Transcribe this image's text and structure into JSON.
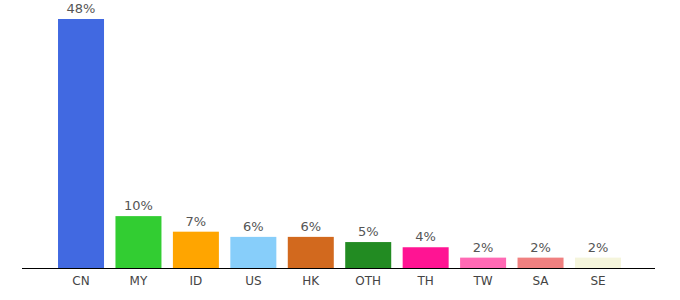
{
  "chart_data": {
    "type": "bar",
    "categories": [
      "CN",
      "MY",
      "ID",
      "US",
      "HK",
      "OTH",
      "TH",
      "TW",
      "SA",
      "SE"
    ],
    "values": [
      48,
      10,
      7,
      6,
      6,
      5,
      4,
      2,
      2,
      2
    ],
    "value_labels": [
      "48%",
      "10%",
      "7%",
      "6%",
      "6%",
      "5%",
      "4%",
      "2%",
      "2%",
      "2%"
    ],
    "colors": [
      "#4169e1",
      "#32cd32",
      "#ffa500",
      "#87cefa",
      "#d2691e",
      "#228b22",
      "#ff1493",
      "#ff69b4",
      "#f08080",
      "#f5f5dc"
    ],
    "ylim": [
      0,
      48
    ],
    "data_labels": true,
    "tick_labels": "x"
  }
}
